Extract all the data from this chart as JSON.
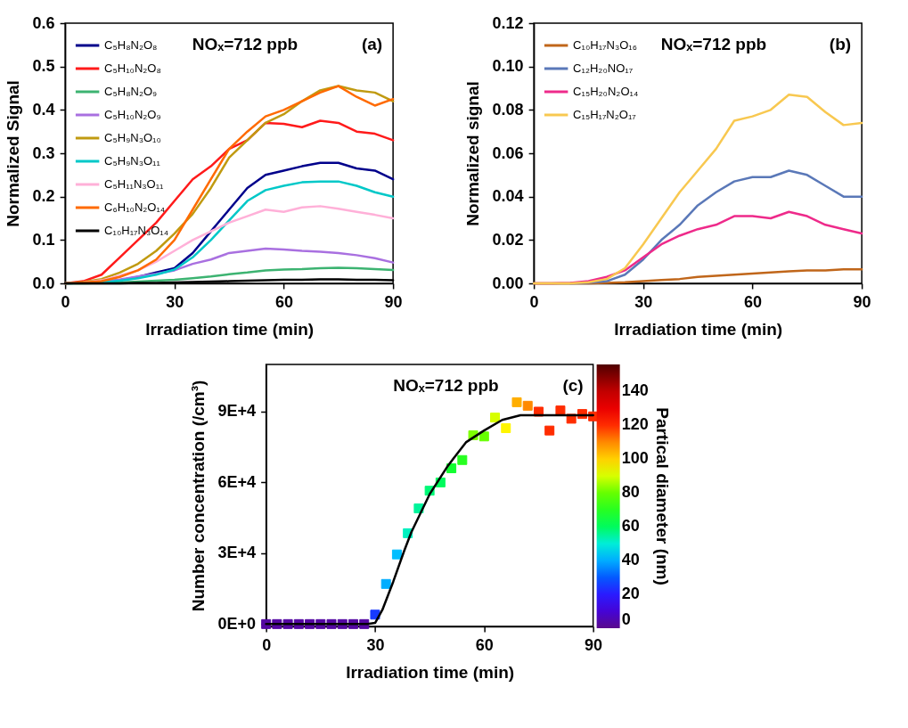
{
  "chart_data": [
    {
      "type": "line",
      "xlabel": "Irradiation time (min)",
      "ylabel": "Normalized Signal",
      "x": [
        0,
        5,
        10,
        15,
        20,
        25,
        30,
        35,
        40,
        45,
        50,
        55,
        60,
        65,
        70,
        75,
        80,
        85,
        90
      ],
      "xlim": [
        0,
        90
      ],
      "xticks": [
        0,
        30,
        60,
        90
      ],
      "ylim": [
        0,
        0.6
      ],
      "yticks": [
        {
          "value": 0,
          "label": "0.0"
        },
        0.1,
        0.2,
        0.3,
        0.4,
        0.5,
        0.6
      ],
      "legend": "top left",
      "annotations": [
        "NOₓ=712 ppb",
        "(a)"
      ],
      "series": [
        {
          "name": "C₅H₈N₂O₈",
          "color": "#00008b",
          "values": [
            0,
            0.001,
            0.003,
            0.007,
            0.015,
            0.025,
            0.035,
            0.07,
            0.12,
            0.17,
            0.22,
            0.25,
            0.26,
            0.27,
            0.278,
            0.278,
            0.265,
            0.26,
            0.24
          ]
        },
        {
          "name": "C₅H₁₀N₂O₈",
          "color": "#ff1a1a",
          "values": [
            0,
            0.005,
            0.02,
            0.06,
            0.1,
            0.14,
            0.19,
            0.24,
            0.27,
            0.31,
            0.33,
            0.37,
            0.368,
            0.36,
            0.375,
            0.37,
            0.35,
            0.345,
            0.33
          ]
        },
        {
          "name": "C₅H₈N₂O₉",
          "color": "#3cb371",
          "values": [
            0,
            0,
            0.001,
            0.002,
            0.004,
            0.006,
            0.008,
            0.012,
            0.016,
            0.021,
            0.025,
            0.03,
            0.032,
            0.033,
            0.035,
            0.036,
            0.035,
            0.033,
            0.031
          ]
        },
        {
          "name": "C₅H₁₀N₂O₉",
          "color": "#a970e0",
          "values": [
            null,
            null,
            0.004,
            0.009,
            0.016,
            0.022,
            0.03,
            0.045,
            0.055,
            0.07,
            0.075,
            0.08,
            0.078,
            0.075,
            0.073,
            0.07,
            0.065,
            0.058,
            0.048
          ]
        },
        {
          "name": "C₅H₉N₃O₁₀",
          "color": "#c09a10",
          "values": [
            0,
            0.003,
            0.01,
            0.025,
            0.045,
            0.075,
            0.115,
            0.16,
            0.22,
            0.29,
            0.33,
            0.37,
            0.39,
            0.42,
            0.445,
            0.455,
            0.445,
            0.44,
            0.42
          ]
        },
        {
          "name": "C₅H₉N₃O₁₁",
          "color": "#00c8c8",
          "values": [
            0,
            0.001,
            0.002,
            0.006,
            0.012,
            0.02,
            0.032,
            0.06,
            0.1,
            0.145,
            0.19,
            0.215,
            0.225,
            0.233,
            0.235,
            0.235,
            0.225,
            0.21,
            0.2
          ]
        },
        {
          "name": "C₅H₁₁N₃O₁₁",
          "color": "#ffb0d8",
          "values": [
            0,
            0.002,
            0.007,
            0.018,
            0.03,
            0.05,
            0.075,
            0.1,
            0.12,
            0.14,
            0.155,
            0.17,
            0.165,
            0.175,
            0.178,
            0.172,
            0.165,
            0.158,
            0.15
          ]
        },
        {
          "name": "C₆H₁₀N₂O₁₄",
          "color": "#ff6a00",
          "values": [
            0,
            0.002,
            0.005,
            0.015,
            0.03,
            0.055,
            0.1,
            0.17,
            0.24,
            0.31,
            0.35,
            0.385,
            0.4,
            0.42,
            0.44,
            0.455,
            0.43,
            0.41,
            0.425
          ]
        },
        {
          "name": "C₁₀H₁₇N₃O₁₄",
          "color": "#000000",
          "values": [
            0,
            0,
            0,
            0,
            0.001,
            0.001,
            0.002,
            0.003,
            0.004,
            0.005,
            0.006,
            0.007,
            0.008,
            0.008,
            0.009,
            0.009,
            0.008,
            0.008,
            0.007
          ]
        }
      ]
    },
    {
      "type": "line",
      "xlabel": "Irradiation time (min)",
      "ylabel": "Normalized signal",
      "x": [
        0,
        5,
        10,
        15,
        20,
        25,
        30,
        35,
        40,
        45,
        50,
        55,
        60,
        65,
        70,
        75,
        80,
        85,
        90
      ],
      "xlim": [
        0,
        90
      ],
      "xticks": [
        0,
        30,
        60,
        90
      ],
      "ylim": [
        0,
        0.12
      ],
      "yticks": [
        {
          "value": 0,
          "label": "0.00"
        },
        0.02,
        0.04,
        0.06,
        0.08,
        {
          "value": 0.1,
          "label": "0.10"
        },
        0.12
      ],
      "legend": "top left",
      "annotations": [
        "NOₓ=712 ppb",
        "(b)"
      ],
      "series": [
        {
          "name": "C₁₀H₁₇N₃O₁₆",
          "color": "#c0661a",
          "values": [
            0,
            0,
            0,
            0,
            0.0002,
            0.0005,
            0.001,
            0.0015,
            0.002,
            0.003,
            0.0035,
            0.004,
            0.0045,
            0.005,
            0.0055,
            0.006,
            0.006,
            0.0065,
            0.0065
          ]
        },
        {
          "name": "C₁₂H₂₀NO₁₇",
          "color": "#5a78b8",
          "values": [
            null,
            null,
            0,
            0.0003,
            0.001,
            0.004,
            0.011,
            0.02,
            0.027,
            0.036,
            0.042,
            0.047,
            0.049,
            0.049,
            0.052,
            0.05,
            0.045,
            0.04,
            0.04
          ]
        },
        {
          "name": "C₁₅H₂₀N₂O₁₄",
          "color": "#ee2a8a",
          "values": [
            0,
            0,
            0.0002,
            0.001,
            0.003,
            0.006,
            0.012,
            0.018,
            0.022,
            0.025,
            0.027,
            0.031,
            0.031,
            0.03,
            0.033,
            0.031,
            0.027,
            0.025,
            0.023
          ]
        },
        {
          "name": "C₁₅H₁₇N₂O₁₇",
          "color": "#f8c850",
          "values": [
            0,
            0,
            0,
            0.0005,
            0.002,
            0.007,
            0.018,
            0.03,
            0.042,
            0.052,
            0.062,
            0.075,
            0.077,
            0.08,
            0.087,
            0.086,
            0.079,
            0.073,
            0.074
          ]
        }
      ]
    },
    {
      "type": "scatter",
      "xlabel": "Irradiation time (min)",
      "ylabel": "Number concentration (/cm³)",
      "clabel": "Partical diameter (nm)",
      "xlim": [
        0,
        90
      ],
      "xticks": [
        0,
        30,
        60,
        90
      ],
      "ylim": [
        -1000,
        110000
      ],
      "yticks": [
        {
          "value": 0,
          "label": "0E+0"
        },
        {
          "value": 30000,
          "label": "3E+4"
        },
        {
          "value": 60000,
          "label": "6E+4"
        },
        {
          "value": 90000,
          "label": "9E+4"
        }
      ],
      "clim": [
        0,
        156
      ],
      "cticks": [
        0,
        20,
        40,
        60,
        80,
        100,
        120,
        140
      ],
      "annotations": [
        "NOₓ=712 ppb",
        "(c)"
      ],
      "series": [
        {
          "type": "scatter",
          "marker": "square",
          "x": [
            0,
            3,
            6,
            9,
            12,
            15,
            18,
            21,
            24,
            27,
            30,
            33,
            36,
            39,
            42,
            45,
            48,
            51,
            54,
            57,
            60,
            63,
            66,
            69,
            72,
            75,
            78,
            81,
            84,
            87,
            90
          ],
          "values": [
            0,
            0,
            0,
            0,
            0,
            0,
            0,
            0,
            0,
            0,
            4000,
            17000,
            29500,
            38500,
            49000,
            56500,
            60000,
            66000,
            69500,
            80000,
            79500,
            87500,
            83000,
            94000,
            92500,
            90000,
            82000,
            90500,
            87000,
            89000,
            88000
          ],
          "cvalues": [
            3,
            3,
            3,
            3,
            3,
            3,
            3,
            3,
            3,
            3,
            25,
            40,
            42,
            52,
            55,
            58,
            60,
            66,
            70,
            82,
            80,
            90,
            95,
            105,
            110,
            120,
            120,
            120,
            120,
            120,
            120
          ],
          "colors": [
            "#5408a2",
            "#5408a2",
            "#5408a2",
            "#5408a2",
            "#5408a2",
            "#5408a2",
            "#5408a2",
            "#5408a2",
            "#5408a2",
            "#5408a2",
            "#173aff",
            "#00adff",
            "#00beff",
            "#00f0bf",
            "#00f49b",
            "#00f876",
            "#00fc5d",
            "#12ff31",
            "#27ff21",
            "#7dff00",
            "#66ff00",
            "#d7ff00",
            "#fff500",
            "#ffae00",
            "#ff8900",
            "#ff2c00",
            "#ff2c00",
            "#ff2c00",
            "#ff2c00",
            "#ff2c00",
            "#ff2c00"
          ]
        },
        {
          "type": "line",
          "color": "#000000",
          "x": [
            0,
            10,
            20,
            28,
            30,
            32,
            35,
            38,
            40,
            45,
            50,
            55,
            60,
            65,
            70,
            75,
            80,
            90
          ],
          "values": [
            0,
            0,
            0,
            0,
            500,
            6000,
            18000,
            31000,
            39000,
            55000,
            67000,
            77000,
            82000,
            86500,
            88500,
            88500,
            88500,
            88500
          ]
        }
      ]
    }
  ]
}
